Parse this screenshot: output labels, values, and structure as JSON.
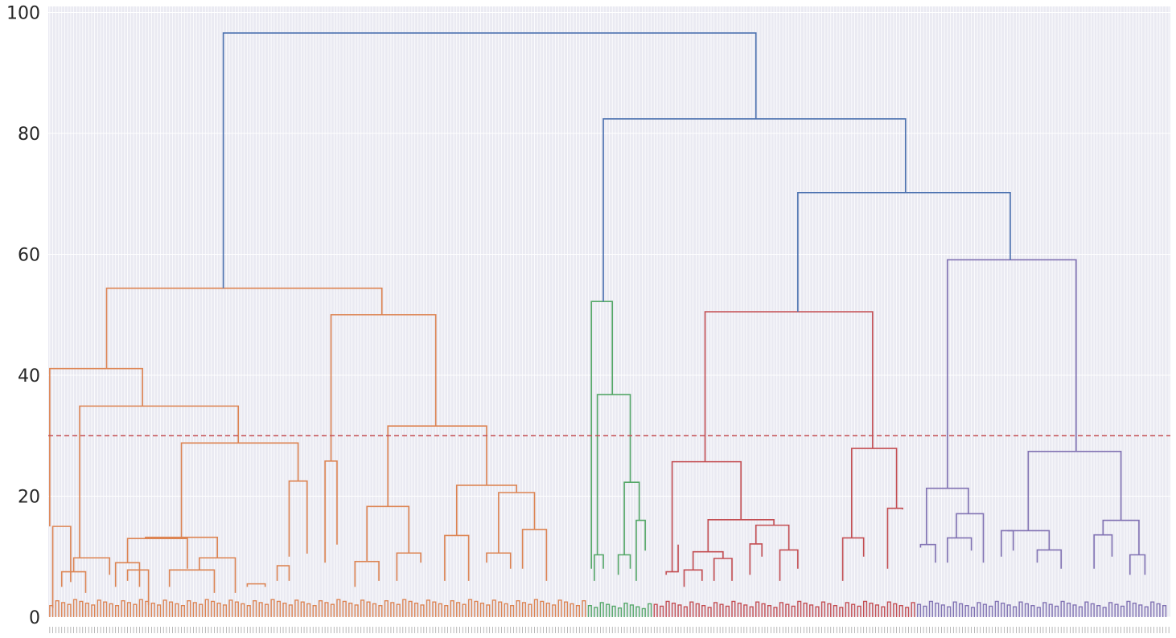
{
  "chart_data": {
    "type": "dendrogram",
    "title": "",
    "xlabel": "",
    "ylabel": "",
    "ylim": [
      0,
      101
    ],
    "y_ticks": [
      "0",
      "20",
      "40",
      "60",
      "80",
      "100"
    ],
    "grid": true,
    "threshold_line": {
      "y": 30,
      "style": "dashed",
      "color": "#c44e52"
    },
    "colors": {
      "root": "#4c72b0",
      "orange": "#dd8452",
      "green": "#55a868",
      "red": "#c44e52",
      "purple": "#8172b3",
      "plot_bg": "#eaeaf2",
      "grid": "#ffffff"
    },
    "leaf_count": 375,
    "clusters": [
      {
        "color": "orange",
        "leaf_range": [
          0,
          180
        ],
        "leaf_height": 1.5
      },
      {
        "color": "green",
        "leaf_range": [
          180,
          202
        ],
        "leaf_height": 1.0
      },
      {
        "color": "red",
        "leaf_range": [
          202,
          290
        ],
        "leaf_height": 1.2
      },
      {
        "color": "purple",
        "leaf_range": [
          290,
          375
        ],
        "leaf_height": 1.2
      }
    ],
    "merges": [
      {
        "color": "orange",
        "left": [
          1,
          1.5
        ],
        "right": [
          7,
          5.8
        ],
        "height": 15
      },
      {
        "color": "orange",
        "left": [
          4,
          5
        ],
        "right": [
          12,
          4
        ],
        "height": 7.5
      },
      {
        "color": "orange",
        "left": [
          8,
          7.5
        ],
        "right": [
          20,
          7
        ],
        "height": 9.8
      },
      {
        "color": "orange",
        "left": [
          26,
          6
        ],
        "right": [
          33,
          2
        ],
        "height": 7.8
      },
      {
        "color": "orange",
        "left": [
          22,
          5
        ],
        "right": [
          30,
          5
        ],
        "height": 9
      },
      {
        "color": "orange",
        "left": [
          26,
          9
        ],
        "right": [
          46,
          8
        ],
        "height": 13
      },
      {
        "color": "orange",
        "left": [
          40,
          5
        ],
        "right": [
          55,
          4
        ],
        "height": 7.8
      },
      {
        "color": "orange",
        "left": [
          50,
          7.8
        ],
        "right": [
          62,
          4
        ],
        "height": 9.8
      },
      {
        "color": "orange",
        "left": [
          32,
          13
        ],
        "right": [
          56,
          9.8
        ],
        "height": 13.2
      },
      {
        "color": "orange",
        "left": [
          66,
          5
        ],
        "right": [
          72,
          5
        ],
        "height": 5.5
      },
      {
        "color": "orange",
        "left": [
          76,
          6
        ],
        "right": [
          80,
          6
        ],
        "height": 8.5
      },
      {
        "color": "orange",
        "left": [
          80,
          10
        ],
        "right": [
          86,
          10.5
        ],
        "height": 22.5
      },
      {
        "color": "orange",
        "left": [
          44,
          13.2
        ],
        "right": [
          83,
          22.5
        ],
        "height": 28.8
      },
      {
        "color": "orange",
        "left": [
          10,
          9.8
        ],
        "right": [
          63,
          28.8
        ],
        "height": 34.9
      },
      {
        "color": "orange",
        "left": [
          0,
          15
        ],
        "right": [
          31,
          34.9
        ],
        "height": 41.1
      },
      {
        "color": "orange",
        "left": [
          92,
          9
        ],
        "right": [
          96,
          12
        ],
        "height": 25.8
      },
      {
        "color": "orange",
        "left": [
          102,
          5
        ],
        "right": [
          110,
          6
        ],
        "height": 9.2
      },
      {
        "color": "orange",
        "left": [
          116,
          6
        ],
        "right": [
          124,
          9
        ],
        "height": 10.6
      },
      {
        "color": "orange",
        "left": [
          106,
          9.2
        ],
        "right": [
          120,
          10.6
        ],
        "height": 18.3
      },
      {
        "color": "orange",
        "left": [
          132,
          6
        ],
        "right": [
          140,
          6
        ],
        "height": 13.5
      },
      {
        "color": "orange",
        "left": [
          146,
          9
        ],
        "right": [
          154,
          8
        ],
        "height": 10.6
      },
      {
        "color": "orange",
        "left": [
          158,
          8
        ],
        "right": [
          166,
          6
        ],
        "height": 14.5
      },
      {
        "color": "orange",
        "left": [
          150,
          10.6
        ],
        "right": [
          162,
          14.5
        ],
        "height": 20.6
      },
      {
        "color": "orange",
        "left": [
          136,
          13.5
        ],
        "right": [
          156,
          20.6
        ],
        "height": 21.8
      },
      {
        "color": "orange",
        "left": [
          113,
          18.3
        ],
        "right": [
          146,
          21.8
        ],
        "height": 31.6
      },
      {
        "color": "orange",
        "left": [
          94,
          25.8
        ],
        "right": [
          129,
          31.6
        ],
        "height": 50
      },
      {
        "color": "orange",
        "left": [
          19,
          41.1
        ],
        "right": [
          111,
          50
        ],
        "height": 54.4
      },
      {
        "color": "green",
        "left": [
          182,
          6
        ],
        "right": [
          185,
          8
        ],
        "height": 10.3
      },
      {
        "color": "green",
        "left": [
          190,
          7
        ],
        "right": [
          194,
          8
        ],
        "height": 10.3
      },
      {
        "color": "green",
        "left": [
          196,
          6
        ],
        "right": [
          199,
          11
        ],
        "height": 16
      },
      {
        "color": "green",
        "left": [
          192,
          10.3
        ],
        "right": [
          197,
          16
        ],
        "height": 22.3
      },
      {
        "color": "green",
        "left": [
          183,
          10.3
        ],
        "right": [
          194,
          22.3
        ],
        "height": 36.8
      },
      {
        "color": "green",
        "left": [
          181,
          8
        ],
        "right": [
          188,
          36.8
        ],
        "height": 52.2
      },
      {
        "color": "red",
        "left": [
          206,
          7
        ],
        "right": [
          210,
          12
        ],
        "height": 7.5
      },
      {
        "color": "red",
        "left": [
          212,
          5
        ],
        "right": [
          218,
          6
        ],
        "height": 7.8
      },
      {
        "color": "red",
        "left": [
          222,
          6
        ],
        "right": [
          228,
          6
        ],
        "height": 9.7
      },
      {
        "color": "red",
        "left": [
          215,
          7.8
        ],
        "right": [
          225,
          9.7
        ],
        "height": 10.8
      },
      {
        "color": "red",
        "left": [
          234,
          7
        ],
        "right": [
          238,
          10
        ],
        "height": 12.1
      },
      {
        "color": "red",
        "left": [
          244,
          6
        ],
        "right": [
          250,
          8
        ],
        "height": 11.1
      },
      {
        "color": "red",
        "left": [
          236,
          12.1
        ],
        "right": [
          247,
          11.1
        ],
        "height": 15.2
      },
      {
        "color": "red",
        "left": [
          220,
          10.8
        ],
        "right": [
          242,
          15.2
        ],
        "height": 16.1
      },
      {
        "color": "red",
        "left": [
          208,
          7.5
        ],
        "right": [
          231,
          16.1
        ],
        "height": 25.7
      },
      {
        "color": "red",
        "left": [
          265,
          6
        ],
        "right": [
          272,
          10
        ],
        "height": 13.1
      },
      {
        "color": "red",
        "left": [
          280,
          8
        ],
        "right": [
          285,
          17.8
        ],
        "height": 18
      },
      {
        "color": "red",
        "left": [
          268,
          13.1
        ],
        "right": [
          283,
          18
        ],
        "height": 27.9
      },
      {
        "color": "red",
        "left": [
          219,
          25.7
        ],
        "right": [
          275,
          27.9
        ],
        "height": 50.5
      },
      {
        "color": "purple",
        "left": [
          291,
          11.5
        ],
        "right": [
          296,
          9
        ],
        "height": 12
      },
      {
        "color": "purple",
        "left": [
          300,
          9
        ],
        "right": [
          308,
          11
        ],
        "height": 13.1
      },
      {
        "color": "purple",
        "left": [
          303,
          13.1
        ],
        "right": [
          312,
          9
        ],
        "height": 17.1
      },
      {
        "color": "purple",
        "left": [
          293,
          12
        ],
        "right": [
          307,
          17.1
        ],
        "height": 21.3
      },
      {
        "color": "purple",
        "left": [
          318,
          10
        ],
        "right": [
          322,
          11
        ],
        "height": 14.3
      },
      {
        "color": "purple",
        "left": [
          330,
          9
        ],
        "right": [
          338,
          8
        ],
        "height": 11.1
      },
      {
        "color": "purple",
        "left": [
          320,
          14.3
        ],
        "right": [
          334,
          11.1
        ],
        "height": 14.3
      },
      {
        "color": "purple",
        "left": [
          349,
          8
        ],
        "right": [
          355,
          10
        ],
        "height": 13.6
      },
      {
        "color": "purple",
        "left": [
          361,
          7
        ],
        "right": [
          366,
          7
        ],
        "height": 10.3
      },
      {
        "color": "purple",
        "left": [
          352,
          13.6
        ],
        "right": [
          364,
          10.3
        ],
        "height": 16
      },
      {
        "color": "purple",
        "left": [
          327,
          14.3
        ],
        "right": [
          358,
          16
        ],
        "height": 27.4
      },
      {
        "color": "purple",
        "left": [
          300,
          21.3
        ],
        "right": [
          343,
          27.4
        ],
        "height": 59.1
      },
      {
        "color": "root",
        "left": [
          250,
          50.5
        ],
        "right": [
          321,
          59.1
        ],
        "height": 70.2
      },
      {
        "color": "root",
        "left": [
          185,
          52.2
        ],
        "right": [
          286,
          70.2
        ],
        "height": 82.4
      },
      {
        "color": "root",
        "left": [
          58,
          54.4
        ],
        "right": [
          236,
          82.4
        ],
        "height": 96.6
      }
    ]
  }
}
